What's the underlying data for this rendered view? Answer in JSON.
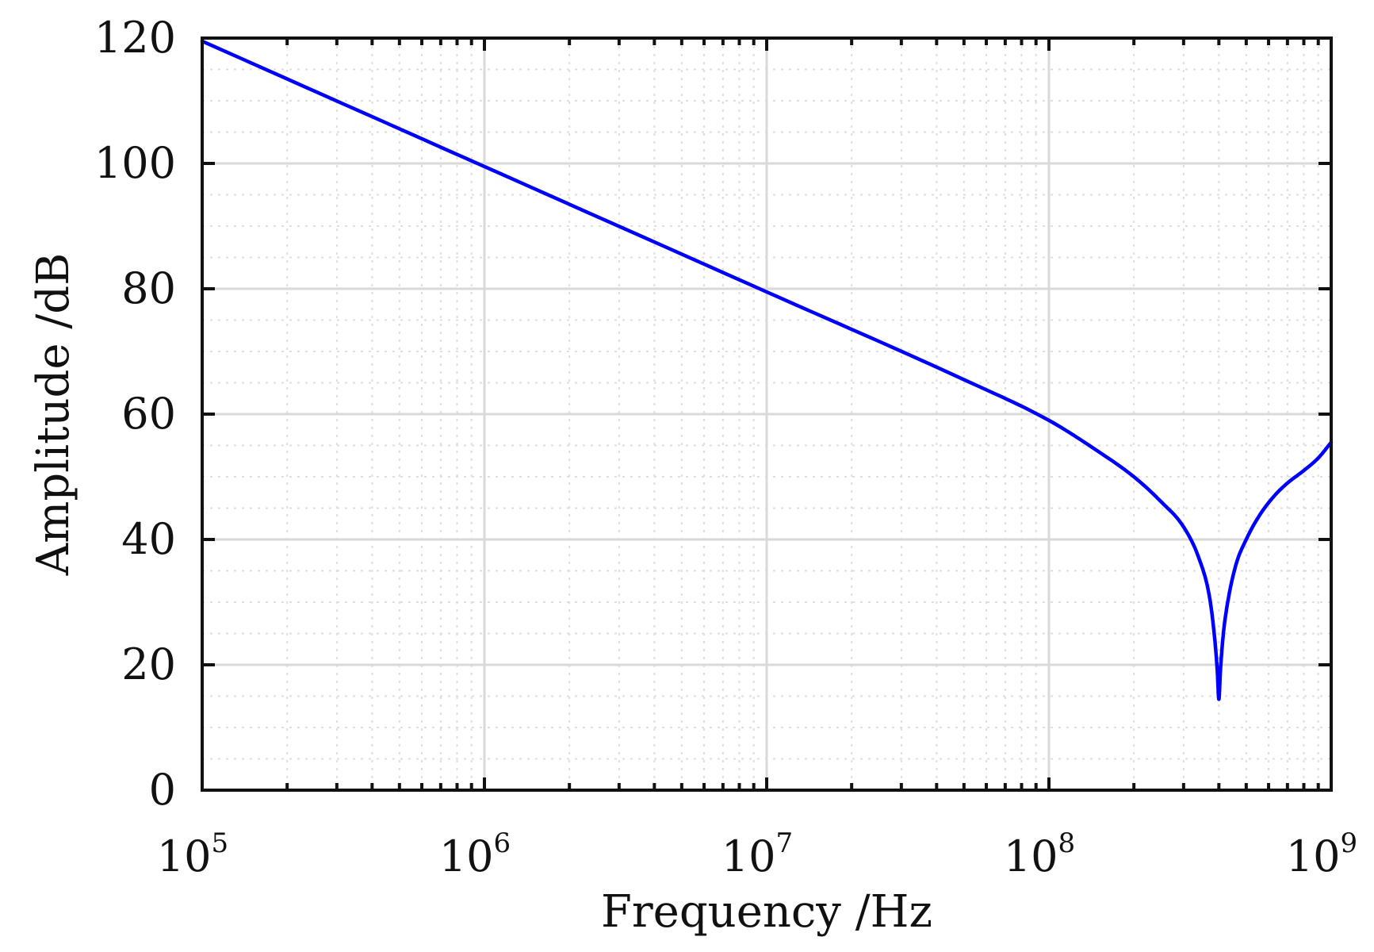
{
  "chart_data": {
    "type": "line",
    "title": "",
    "xlabel": "Frequency /Hz",
    "ylabel": "Amplitude /dB",
    "xscale": "log",
    "xlim": [
      100000,
      1000000000
    ],
    "ylim": [
      0,
      120
    ],
    "grid": true,
    "x_ticks": [
      {
        "value": 100000,
        "base": "10",
        "exp": "5"
      },
      {
        "value": 1000000,
        "base": "10",
        "exp": "6"
      },
      {
        "value": 10000000,
        "base": "10",
        "exp": "7"
      },
      {
        "value": 100000000,
        "base": "10",
        "exp": "8"
      },
      {
        "value": 1000000000,
        "base": "10",
        "exp": "9"
      }
    ],
    "y_ticks": [
      "0",
      "20",
      "40",
      "60",
      "80",
      "100",
      "120"
    ],
    "series": [
      {
        "name": "Amplitude",
        "color": "#0000ff",
        "x": [
          100000,
          1000000,
          10000000,
          50000000,
          100000000,
          150000000,
          200000000,
          250000000,
          300000000,
          340000000,
          370000000,
          385000000,
          395000000,
          400000000,
          405000000,
          415000000,
          430000000,
          460000000,
          500000000,
          560000000,
          630000000,
          700000000,
          800000000,
          900000000,
          1000000000
        ],
        "values": [
          119.5,
          99.5,
          79.5,
          65.5,
          59,
          54,
          50,
          46,
          42,
          37,
          31,
          25,
          19,
          14.5,
          19,
          25,
          30,
          36,
          40,
          44,
          47,
          49,
          51,
          53,
          55.5
        ]
      }
    ]
  },
  "colors": {
    "series": "#0000ff",
    "grid": "#d9d9d9",
    "axis": "#111111"
  }
}
